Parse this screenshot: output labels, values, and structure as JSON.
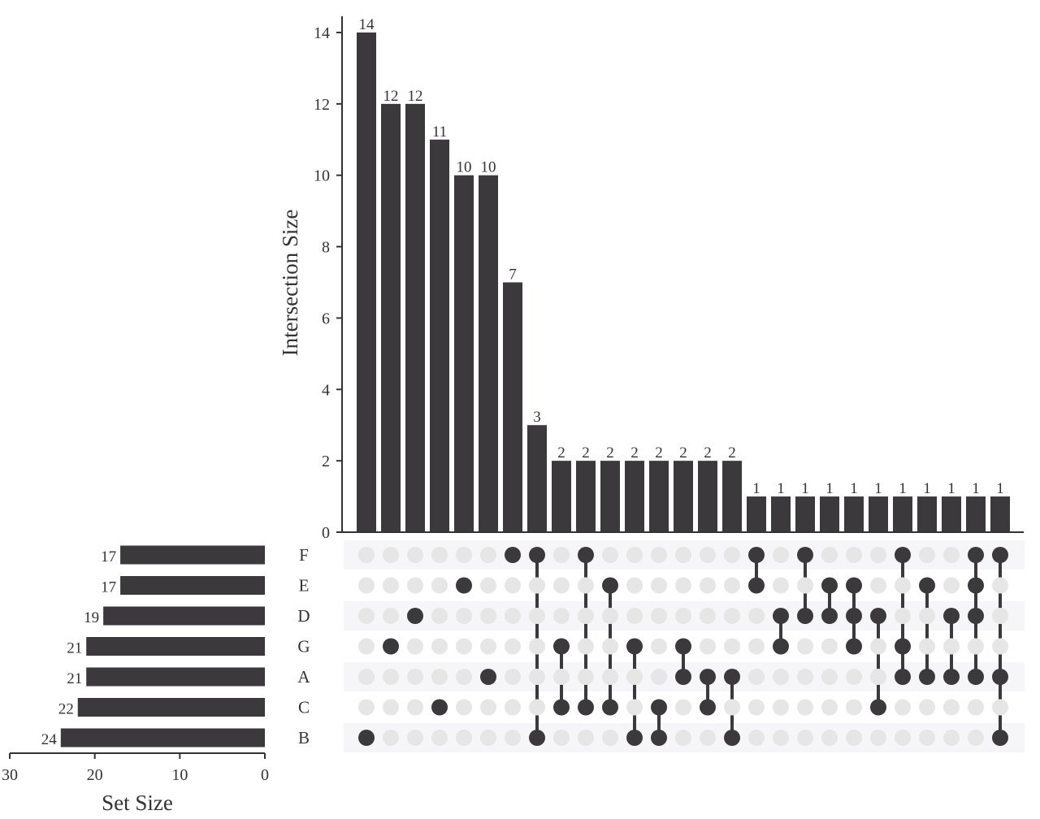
{
  "chart_data": {
    "type": "upset",
    "sets": [
      "F",
      "E",
      "D",
      "G",
      "A",
      "C",
      "B"
    ],
    "set_sizes": [
      17,
      17,
      19,
      21,
      21,
      22,
      24
    ],
    "intersections": [
      {
        "sets": [
          "B"
        ],
        "size": 14
      },
      {
        "sets": [
          "G"
        ],
        "size": 12
      },
      {
        "sets": [
          "D"
        ],
        "size": 12
      },
      {
        "sets": [
          "C"
        ],
        "size": 11
      },
      {
        "sets": [
          "E"
        ],
        "size": 10
      },
      {
        "sets": [
          "A"
        ],
        "size": 10
      },
      {
        "sets": [
          "F"
        ],
        "size": 7
      },
      {
        "sets": [
          "F",
          "B"
        ],
        "size": 3
      },
      {
        "sets": [
          "G",
          "C"
        ],
        "size": 2
      },
      {
        "sets": [
          "F",
          "C"
        ],
        "size": 2
      },
      {
        "sets": [
          "E",
          "C"
        ],
        "size": 2
      },
      {
        "sets": [
          "G",
          "B"
        ],
        "size": 2
      },
      {
        "sets": [
          "C",
          "B"
        ],
        "size": 2
      },
      {
        "sets": [
          "G",
          "A"
        ],
        "size": 2
      },
      {
        "sets": [
          "A",
          "C"
        ],
        "size": 2
      },
      {
        "sets": [
          "A",
          "B"
        ],
        "size": 2
      },
      {
        "sets": [
          "F",
          "E"
        ],
        "size": 1
      },
      {
        "sets": [
          "D",
          "G"
        ],
        "size": 1
      },
      {
        "sets": [
          "F",
          "D"
        ],
        "size": 1
      },
      {
        "sets": [
          "E",
          "D"
        ],
        "size": 1
      },
      {
        "sets": [
          "E",
          "D",
          "G"
        ],
        "size": 1
      },
      {
        "sets": [
          "D",
          "C"
        ],
        "size": 1
      },
      {
        "sets": [
          "F",
          "G",
          "A"
        ],
        "size": 1
      },
      {
        "sets": [
          "E",
          "A"
        ],
        "size": 1
      },
      {
        "sets": [
          "D",
          "A"
        ],
        "size": 1
      },
      {
        "sets": [
          "F",
          "E",
          "D",
          "A"
        ],
        "size": 1
      },
      {
        "sets": [
          "F",
          "A",
          "B"
        ],
        "size": 1
      }
    ],
    "intersection_axis": {
      "label": "Intersection Size",
      "range": [
        0,
        14
      ],
      "ticks": [
        0,
        2,
        4,
        6,
        8,
        10,
        12,
        14
      ]
    },
    "set_size_axis": {
      "label": "Set Size",
      "range": [
        30,
        0
      ],
      "ticks": [
        30,
        20,
        10,
        0
      ]
    },
    "grid": false,
    "legend": "none",
    "colors": {
      "bar": "#3b393c",
      "dot_active": "#3b393c",
      "dot_inactive": "#e6e6e6",
      "row_stripe": "#f6f5f7",
      "axis": "#333333"
    }
  }
}
